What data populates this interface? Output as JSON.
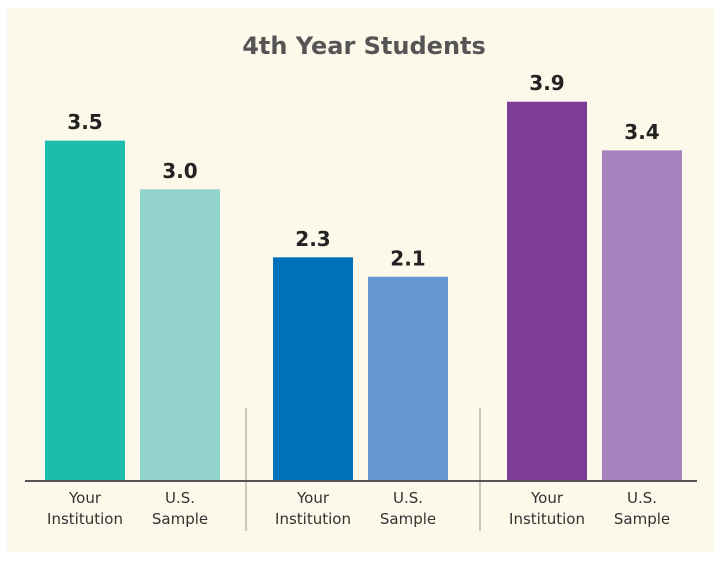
{
  "chart_data": {
    "type": "bar",
    "title": "4th Year Students",
    "categories": [
      "Your Institution",
      "U.S. Sample",
      "Your Institution",
      "U.S. Sample",
      "Your Institution",
      "U.S. Sample"
    ],
    "values": [
      3.5,
      3.0,
      2.3,
      2.1,
      3.9,
      3.4
    ],
    "value_labels": [
      "3.5",
      "3.0",
      "2.3",
      "2.1",
      "3.9",
      "3.4"
    ],
    "colors": [
      "#1dbdad",
      "#92d3cb",
      "#0070bb",
      "#6699d1",
      "#7d3c96",
      "#a683bd"
    ],
    "ylim": [
      0,
      4
    ]
  }
}
